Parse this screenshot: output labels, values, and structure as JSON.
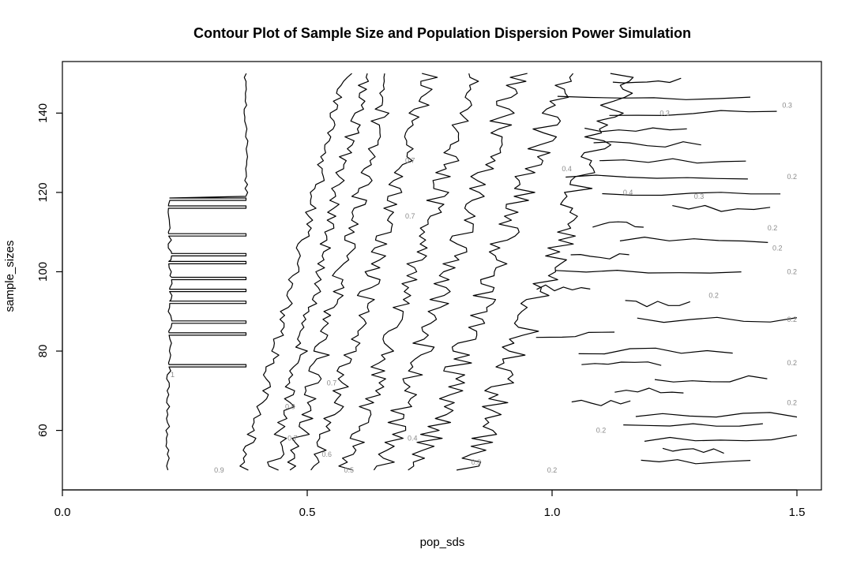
{
  "chart_data": {
    "type": "contour",
    "title": "Contour Plot of Sample Size and Population Dispersion Power Simulation",
    "xlabel": "pop_sds",
    "ylabel": "sample_sizes",
    "xlim": [
      0,
      1.55
    ],
    "ylim": [
      45,
      153
    ],
    "x_ticks": [
      0.0,
      0.5,
      1.0,
      1.5
    ],
    "x_tick_labels": [
      "0.0",
      "0.5",
      "1.0",
      "1.5"
    ],
    "y_ticks": [
      60,
      80,
      100,
      120,
      140
    ],
    "y_tick_labels": [
      "60",
      "80",
      "100",
      "120",
      "140"
    ],
    "grid": false,
    "legend": "none",
    "levels": [
      {
        "level": 1,
        "x_base": 0.215,
        "x_top": 0.375,
        "amp": 0.004,
        "step_rows": [
          76,
          84,
          87,
          92,
          95,
          98,
          102,
          104,
          109,
          116,
          118
        ]
      },
      {
        "level": 0.9,
        "x_base": 0.37,
        "x_top": 0.58,
        "amp": 0.012
      },
      {
        "level": 0.8,
        "x_base": 0.43,
        "x_top": 0.62,
        "amp": 0.015
      },
      {
        "level": 0.7,
        "x_base": 0.47,
        "x_top": 0.67,
        "amp": 0.017
      },
      {
        "level": 0.6,
        "x_base": 0.52,
        "x_top": 0.75,
        "amp": 0.019
      },
      {
        "level": 0.5,
        "x_base": 0.58,
        "x_top": 0.85,
        "amp": 0.021
      },
      {
        "level": 0.4,
        "x_base": 0.65,
        "x_top": 0.93,
        "amp": 0.024
      },
      {
        "level": 0.3,
        "x_base": 0.73,
        "x_top": 1.03,
        "amp": 0.028
      },
      {
        "level": 0.2,
        "x_base": 0.83,
        "x_top": 1.15,
        "amp": 0.032
      }
    ],
    "contour_labels": [
      {
        "text": "1",
        "x": 0.225,
        "y": 74
      },
      {
        "text": "0.9",
        "x": 0.32,
        "y": 50
      },
      {
        "text": "0.8",
        "x": 0.465,
        "y": 66
      },
      {
        "text": "0.7",
        "x": 0.47,
        "y": 58
      },
      {
        "text": "0.7",
        "x": 0.55,
        "y": 72
      },
      {
        "text": "0.7",
        "x": 0.71,
        "y": 114
      },
      {
        "text": "0.7",
        "x": 0.71,
        "y": 128
      },
      {
        "text": "0.6",
        "x": 0.54,
        "y": 54
      },
      {
        "text": "0.5",
        "x": 0.585,
        "y": 50
      },
      {
        "text": "0.4",
        "x": 0.715,
        "y": 58
      },
      {
        "text": "0.4",
        "x": 1.03,
        "y": 126
      },
      {
        "text": "0.4",
        "x": 1.155,
        "y": 120
      },
      {
        "text": "0.3",
        "x": 0.845,
        "y": 52
      },
      {
        "text": "0.3",
        "x": 1.23,
        "y": 140
      },
      {
        "text": "0.3",
        "x": 1.3,
        "y": 119
      },
      {
        "text": "0.3",
        "x": 1.48,
        "y": 142
      },
      {
        "text": "0.2",
        "x": 1.0,
        "y": 50
      },
      {
        "text": "0.2",
        "x": 1.1,
        "y": 60
      },
      {
        "text": "0.2",
        "x": 1.33,
        "y": 94
      },
      {
        "text": "0.2",
        "x": 1.45,
        "y": 111
      },
      {
        "text": "0.2",
        "x": 1.46,
        "y": 106
      },
      {
        "text": "0.2",
        "x": 1.49,
        "y": 124
      },
      {
        "text": "0.2",
        "x": 1.49,
        "y": 100
      },
      {
        "text": "0.2",
        "x": 1.49,
        "y": 88
      },
      {
        "text": "0.2",
        "x": 1.49,
        "y": 77
      },
      {
        "text": "0.2",
        "x": 1.49,
        "y": 67
      }
    ]
  }
}
